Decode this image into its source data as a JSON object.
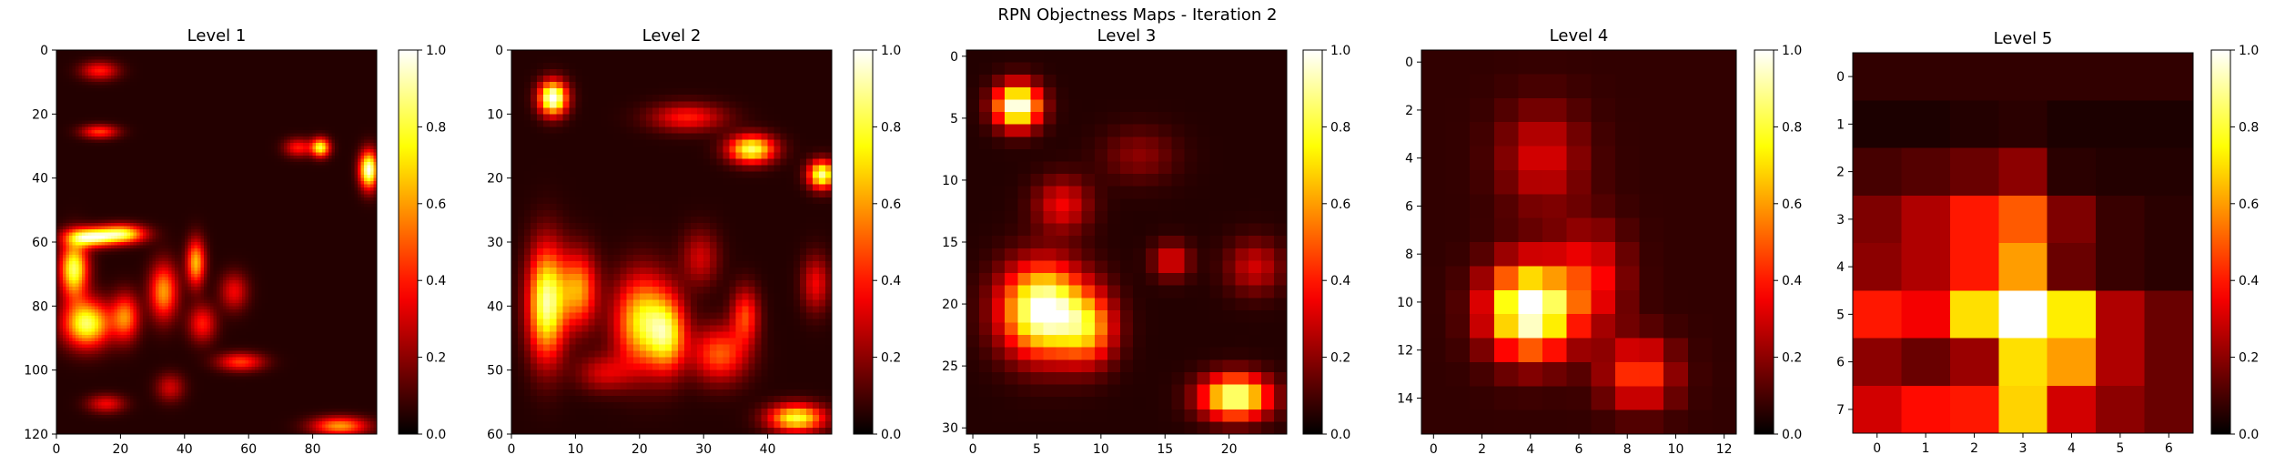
{
  "figure": {
    "title": "RPN Objectness Maps - Iteration 2"
  },
  "colormap": {
    "name": "hot",
    "stops": [
      {
        "v": 0.0,
        "color": "#000000"
      },
      {
        "v": 0.365,
        "color": "#ff0000"
      },
      {
        "v": 0.746,
        "color": "#ffff00"
      },
      {
        "v": 1.0,
        "color": "#ffffff"
      }
    ]
  },
  "chart_data": [
    {
      "type": "heatmap",
      "title": "Level 1",
      "grid_size": [
        120,
        100
      ],
      "xticks": [
        0,
        20,
        40,
        60,
        80
      ],
      "yticks": [
        0,
        20,
        40,
        60,
        80,
        100,
        120
      ],
      "value_range": [
        0,
        1
      ],
      "colorbar_ticks": [
        "0.0",
        "0.2",
        "0.4",
        "0.6",
        "0.8",
        "1.0"
      ],
      "hotspots": [
        {
          "x": 97,
          "y": 37,
          "sx": 2,
          "sy": 4,
          "v": 0.95
        },
        {
          "x": 82,
          "y": 30,
          "sx": 2,
          "sy": 2,
          "v": 0.75
        },
        {
          "x": 10,
          "y": 58,
          "sx": 5,
          "sy": 2,
          "v": 0.85
        },
        {
          "x": 20,
          "y": 57,
          "sx": 5,
          "sy": 2,
          "v": 0.75
        },
        {
          "x": 5,
          "y": 68,
          "sx": 3,
          "sy": 6,
          "v": 0.8
        },
        {
          "x": 9,
          "y": 85,
          "sx": 5,
          "sy": 5,
          "v": 0.8
        },
        {
          "x": 21,
          "y": 83,
          "sx": 3,
          "sy": 5,
          "v": 0.5
        },
        {
          "x": 33,
          "y": 75,
          "sx": 3,
          "sy": 6,
          "v": 0.55
        },
        {
          "x": 43,
          "y": 66,
          "sx": 2,
          "sy": 5,
          "v": 0.6
        },
        {
          "x": 45,
          "y": 85,
          "sx": 3,
          "sy": 4,
          "v": 0.35
        },
        {
          "x": 57,
          "y": 97,
          "sx": 5,
          "sy": 2,
          "v": 0.4
        },
        {
          "x": 55,
          "y": 75,
          "sx": 3,
          "sy": 4,
          "v": 0.3
        },
        {
          "x": 88,
          "y": 117,
          "sx": 6,
          "sy": 2,
          "v": 0.55
        },
        {
          "x": 13,
          "y": 25,
          "sx": 4,
          "sy": 1.5,
          "v": 0.4
        },
        {
          "x": 13,
          "y": 6,
          "sx": 4,
          "sy": 2,
          "v": 0.35
        },
        {
          "x": 15,
          "y": 110,
          "sx": 4,
          "sy": 2,
          "v": 0.3
        },
        {
          "x": 75,
          "y": 30,
          "sx": 3,
          "sy": 2,
          "v": 0.35
        },
        {
          "x": 35,
          "y": 105,
          "sx": 3,
          "sy": 3,
          "v": 0.25
        }
      ]
    },
    {
      "type": "heatmap",
      "title": "Level 2",
      "grid_size": [
        60,
        50
      ],
      "xticks": [
        0,
        10,
        20,
        30,
        40
      ],
      "yticks": [
        0,
        10,
        20,
        30,
        40,
        50,
        60
      ],
      "value_range": [
        0,
        1
      ],
      "colorbar_ticks": [
        "0.0",
        "0.2",
        "0.4",
        "0.6",
        "0.8",
        "1.0"
      ],
      "hotspots": [
        {
          "x": 6,
          "y": 7,
          "sx": 1.5,
          "sy": 1.8,
          "v": 1.0
        },
        {
          "x": 37,
          "y": 15,
          "sx": 2.5,
          "sy": 1.5,
          "v": 0.8
        },
        {
          "x": 48,
          "y": 19,
          "sx": 1.5,
          "sy": 1.5,
          "v": 0.85
        },
        {
          "x": 27,
          "y": 10,
          "sx": 4,
          "sy": 1.5,
          "v": 0.35
        },
        {
          "x": 5,
          "y": 39,
          "sx": 2,
          "sy": 6,
          "v": 0.85
        },
        {
          "x": 10,
          "y": 37,
          "sx": 2,
          "sy": 4,
          "v": 0.55
        },
        {
          "x": 20,
          "y": 42,
          "sx": 3,
          "sy": 5,
          "v": 0.7
        },
        {
          "x": 24,
          "y": 44,
          "sx": 2,
          "sy": 4,
          "v": 0.55
        },
        {
          "x": 32,
          "y": 47,
          "sx": 3,
          "sy": 3,
          "v": 0.45
        },
        {
          "x": 36,
          "y": 41,
          "sx": 1.5,
          "sy": 3,
          "v": 0.4
        },
        {
          "x": 44,
          "y": 57,
          "sx": 3,
          "sy": 1.5,
          "v": 0.75
        },
        {
          "x": 47,
          "y": 36,
          "sx": 1.5,
          "sy": 3,
          "v": 0.3
        },
        {
          "x": 14,
          "y": 50,
          "sx": 3,
          "sy": 2,
          "v": 0.25
        },
        {
          "x": 29,
          "y": 32,
          "sx": 2,
          "sy": 3,
          "v": 0.25
        }
      ]
    },
    {
      "type": "heatmap",
      "title": "Level 3",
      "grid_size": [
        31,
        25
      ],
      "xticks": [
        0,
        5,
        10,
        15,
        20
      ],
      "yticks": [
        0,
        5,
        10,
        15,
        20,
        25,
        30
      ],
      "value_range": [
        0,
        1
      ],
      "colorbar_ticks": [
        "0.0",
        "0.2",
        "0.4",
        "0.6",
        "0.8",
        "1.0"
      ],
      "hotspots": [
        {
          "x": 3.5,
          "y": 4,
          "sx": 1.2,
          "sy": 1.2,
          "v": 1.0
        },
        {
          "x": 5.5,
          "y": 20.5,
          "sx": 2.2,
          "sy": 2.5,
          "v": 1.0
        },
        {
          "x": 9,
          "y": 22,
          "sx": 1.5,
          "sy": 2,
          "v": 0.5
        },
        {
          "x": 20.5,
          "y": 27.5,
          "sx": 1.8,
          "sy": 1.2,
          "v": 0.9
        },
        {
          "x": 7,
          "y": 12,
          "sx": 1.5,
          "sy": 1.5,
          "v": 0.3
        },
        {
          "x": 15.5,
          "y": 16.5,
          "sx": 1,
          "sy": 1,
          "v": 0.3
        },
        {
          "x": 22,
          "y": 17,
          "sx": 1.5,
          "sy": 1.5,
          "v": 0.25
        },
        {
          "x": 13,
          "y": 8,
          "sx": 2,
          "sy": 1.5,
          "v": 0.15
        }
      ]
    },
    {
      "type": "heatmap",
      "title": "Level 4",
      "grid_size": [
        16,
        13
      ],
      "xticks": [
        0,
        2,
        4,
        6,
        8,
        10,
        12
      ],
      "yticks": [
        0,
        2,
        4,
        6,
        8,
        10,
        12,
        14
      ],
      "value_range": [
        0,
        1
      ],
      "colorbar_ticks": [
        "0.0",
        "0.2",
        "0.4",
        "0.6",
        "0.8",
        "1.0"
      ],
      "hotspots": [
        {
          "x": 4,
          "y": 10.3,
          "sx": 1.2,
          "sy": 1.3,
          "v": 1.0
        },
        {
          "x": 8.5,
          "y": 13,
          "sx": 1,
          "sy": 1,
          "v": 0.4
        },
        {
          "x": 4.5,
          "y": 4,
          "sx": 1.2,
          "sy": 1.5,
          "v": 0.25
        },
        {
          "x": 6.5,
          "y": 9,
          "sx": 1,
          "sy": 1.5,
          "v": 0.3
        }
      ]
    },
    {
      "type": "heatmap",
      "title": "Level 5",
      "grid_size": [
        8,
        7
      ],
      "xticks": [
        0,
        1,
        2,
        3,
        4,
        5,
        6
      ],
      "yticks": [
        0,
        1,
        2,
        3,
        4,
        5,
        6,
        7
      ],
      "value_range": [
        0,
        1
      ],
      "colorbar_ticks": [
        "0.0",
        "0.2",
        "0.4",
        "0.6",
        "0.8",
        "1.0"
      ],
      "cells": [
        [
          0.07,
          0.07,
          0.07,
          0.07,
          0.07,
          0.07,
          0.07
        ],
        [
          0.04,
          0.04,
          0.05,
          0.06,
          0.04,
          0.04,
          0.04
        ],
        [
          0.1,
          0.12,
          0.15,
          0.2,
          0.06,
          0.05,
          0.05
        ],
        [
          0.18,
          0.25,
          0.4,
          0.5,
          0.18,
          0.08,
          0.06
        ],
        [
          0.2,
          0.25,
          0.4,
          0.6,
          0.15,
          0.08,
          0.06
        ],
        [
          0.4,
          0.35,
          0.7,
          1.0,
          0.72,
          0.25,
          0.15
        ],
        [
          0.2,
          0.15,
          0.22,
          0.7,
          0.6,
          0.25,
          0.15
        ],
        [
          0.3,
          0.38,
          0.4,
          0.68,
          0.3,
          0.2,
          0.15
        ]
      ]
    }
  ]
}
